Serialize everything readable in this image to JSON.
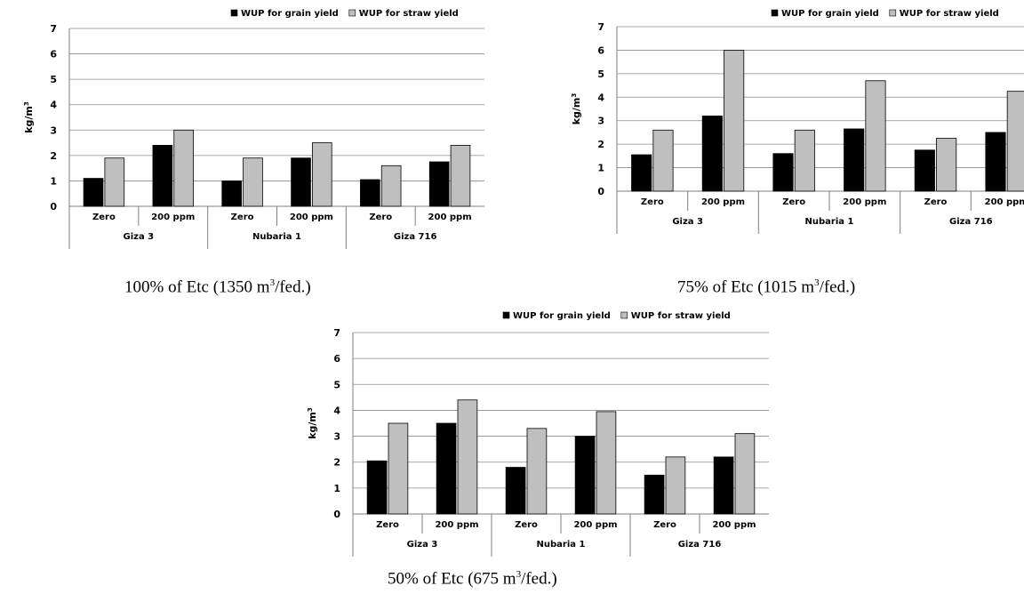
{
  "colors": {
    "grain": "#000000",
    "straw": "#bfbfbf",
    "grid": "#8c8c8c",
    "axis": "#7f7f7f"
  },
  "legend_icons": [
    "filled-square-icon",
    "light-square-icon"
  ],
  "charts": [
    {
      "caption": {
        "before": "100% of Etc (1350 m",
        "sup": "3",
        "after": "/fed.)"
      },
      "chart_data": {
        "type": "bar",
        "ylabel": "kg/m3",
        "ylim": [
          0,
          7
        ],
        "yticks": [
          "0",
          "1",
          "2",
          "3",
          "4",
          "5",
          "6",
          "7"
        ],
        "grid": true,
        "legend_position": "top-right",
        "categories": [
          "Zero",
          "200 ppm",
          "Zero",
          "200 ppm",
          "Zero",
          "200 ppm"
        ],
        "groups": [
          "Giza 3",
          "Nubaria 1",
          "Giza 716"
        ],
        "series": [
          {
            "name": "WUP for grain yield",
            "values": [
              1.1,
              2.4,
              1.0,
              1.9,
              1.05,
              1.75
            ]
          },
          {
            "name": "WUP for straw yield",
            "values": [
              1.9,
              3.0,
              1.9,
              2.5,
              1.6,
              2.4
            ]
          }
        ]
      }
    },
    {
      "caption": {
        "before": "75% of Etc (1015 m",
        "sup": "3",
        "after": "/fed.)"
      },
      "chart_data": {
        "type": "bar",
        "ylabel": "kg/m3",
        "ylim": [
          0,
          7
        ],
        "yticks": [
          "0",
          "1",
          "2",
          "3",
          "4",
          "5",
          "6",
          "7"
        ],
        "grid": true,
        "legend_position": "top-right",
        "categories": [
          "Zero",
          "200 ppm",
          "Zero",
          "200 ppm",
          "Zero",
          "200 ppm"
        ],
        "groups": [
          "Giza 3",
          "Nubaria 1",
          "Giza 716"
        ],
        "series": [
          {
            "name": "WUP for grain yield",
            "values": [
              1.55,
              3.2,
              1.6,
              2.65,
              1.75,
              2.5
            ]
          },
          {
            "name": "WUP for straw yield",
            "values": [
              2.6,
              6.0,
              2.6,
              4.7,
              2.25,
              4.25
            ]
          }
        ]
      }
    },
    {
      "caption": {
        "before": "50% of Etc (675 m",
        "sup": "3",
        "after": "/fed.)"
      },
      "chart_data": {
        "type": "bar",
        "ylabel": "kg/m3",
        "ylim": [
          0,
          7
        ],
        "yticks": [
          "0",
          "1",
          "2",
          "3",
          "4",
          "5",
          "6",
          "7"
        ],
        "grid": true,
        "legend_position": "top-right",
        "categories": [
          "Zero",
          "200 ppm",
          "Zero",
          "200 ppm",
          "Zero",
          "200 ppm"
        ],
        "groups": [
          "Giza 3",
          "Nubaria 1",
          "Giza 716"
        ],
        "series": [
          {
            "name": "WUP for grain yield",
            "values": [
              2.05,
              3.5,
              1.8,
              3.0,
              1.5,
              2.2
            ]
          },
          {
            "name": "WUP for straw yield",
            "values": [
              3.5,
              4.4,
              3.3,
              3.95,
              2.2,
              3.1
            ]
          }
        ]
      }
    }
  ]
}
